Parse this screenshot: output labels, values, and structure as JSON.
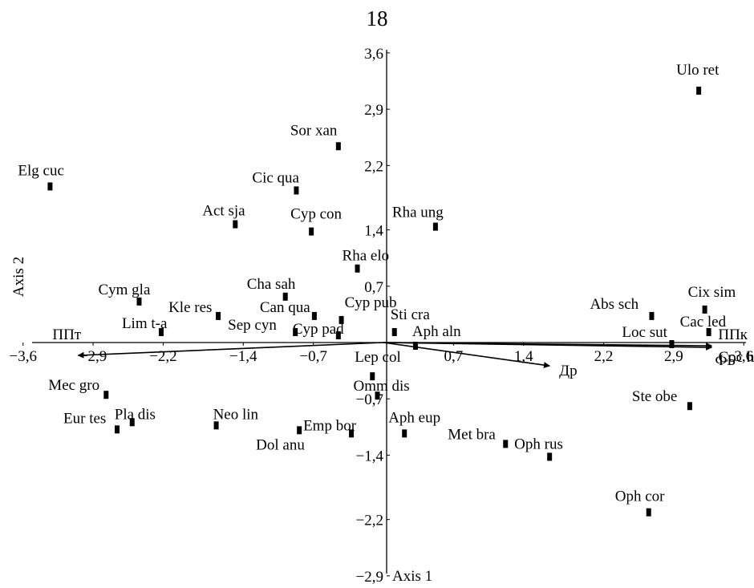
{
  "page": {
    "number": "18"
  },
  "chart_data": {
    "type": "scatter",
    "title": "",
    "xlabel": "Axis 1",
    "ylabel": "Axis 2",
    "xlim": [
      -3.6,
      3.6
    ],
    "ylim": [
      -2.9,
      3.6
    ],
    "x_ticks": [
      "−3,6",
      "−2,9",
      "−2,2",
      "−1,4",
      "−0,7",
      "0,7",
      "1,4",
      "2,2",
      "2,9",
      "3,6"
    ],
    "x_tick_values": [
      -3.6,
      -2.9,
      -2.2,
      -1.4,
      -0.7,
      0.7,
      1.4,
      2.2,
      2.9,
      3.6
    ],
    "y_ticks": [
      "3,6",
      "2,9",
      "2,2",
      "1,4",
      "0,7",
      "−0,7",
      "−1,4",
      "−2,2",
      "−2,9"
    ],
    "y_tick_values": [
      3.6,
      2.9,
      2.2,
      1.4,
      0.7,
      -0.7,
      -1.4,
      -2.2,
      -2.9
    ],
    "grid": false,
    "points": [
      {
        "label": "Ulo ret",
        "x": 3.15,
        "y": 3.13
      },
      {
        "label": "Sor xan",
        "x": -0.45,
        "y": 2.44
      },
      {
        "label": "Elg cuc",
        "x": -3.33,
        "y": 1.94
      },
      {
        "label": "Cic qua",
        "x": -0.87,
        "y": 1.89
      },
      {
        "label": "Act sja",
        "x": -1.48,
        "y": 1.47
      },
      {
        "label": "Cyp con",
        "x": -0.72,
        "y": 1.38
      },
      {
        "label": "Rha ung",
        "x": 0.52,
        "y": 1.44
      },
      {
        "label": "Rha elo",
        "x": -0.26,
        "y": 0.92
      },
      {
        "label": "Cha sah",
        "x": -0.98,
        "y": 0.57
      },
      {
        "label": "Cym gla",
        "x": -2.44,
        "y": 0.51
      },
      {
        "label": "Kle res",
        "x": -1.65,
        "y": 0.33
      },
      {
        "label": "Can qua",
        "x": -0.69,
        "y": 0.33
      },
      {
        "label": "Cyp pub",
        "x": -0.42,
        "y": 0.28
      },
      {
        "label": "Lim t-a",
        "x": -2.22,
        "y": 0.13
      },
      {
        "label": "Sep cyn",
        "x": -0.88,
        "y": 0.13
      },
      {
        "label": "Cyp pad",
        "x": -0.45,
        "y": 0.09
      },
      {
        "label": "Sti cra",
        "x": 0.11,
        "y": 0.13
      },
      {
        "label": "Aph aln",
        "x": 0.32,
        "y": -0.04
      },
      {
        "label": "Abs sch",
        "x": 2.68,
        "y": 0.33
      },
      {
        "label": "Cix sim",
        "x": 3.21,
        "y": 0.41
      },
      {
        "label": "Cac led",
        "x": 3.25,
        "y": 0.13
      },
      {
        "label": "Loc sut",
        "x": 2.88,
        "y": -0.02
      },
      {
        "label": "Lep col",
        "x": -0.11,
        "y": -0.42
      },
      {
        "label": "Omm dis",
        "x": -0.06,
        "y": -0.66
      },
      {
        "label": "Mec gro",
        "x": -2.77,
        "y": -0.65
      },
      {
        "label": "Pla dis",
        "x": -2.51,
        "y": -0.99
      },
      {
        "label": "Eur tes",
        "x": -2.66,
        "y": -1.08
      },
      {
        "label": "Neo lin",
        "x": -1.67,
        "y": -1.03
      },
      {
        "label": "Emp bor",
        "x": -0.32,
        "y": -1.13
      },
      {
        "label": "Dol anu",
        "x": -0.84,
        "y": -1.09
      },
      {
        "label": "Aph eup",
        "x": 0.21,
        "y": -1.13
      },
      {
        "label": "Met bra",
        "x": 1.22,
        "y": -1.26
      },
      {
        "label": "Oph rus",
        "x": 1.66,
        "y": -1.42
      },
      {
        "label": "Coc hie",
        "x": 3.89,
        "y": -0.64
      },
      {
        "label": "Ste obe",
        "x": 3.06,
        "y": -0.79
      },
      {
        "label": "Oph cor",
        "x": 2.65,
        "y": -2.11
      }
    ],
    "vectors": [
      {
        "label": "ППт",
        "x": -3.05,
        "y": -0.16
      },
      {
        "label": "ППк",
        "x": 3.28,
        "y": -0.04
      },
      {
        "label": "ФБ",
        "x": 3.28,
        "y": -0.06
      },
      {
        "label": "Др",
        "x": 1.66,
        "y": -0.29
      }
    ]
  }
}
